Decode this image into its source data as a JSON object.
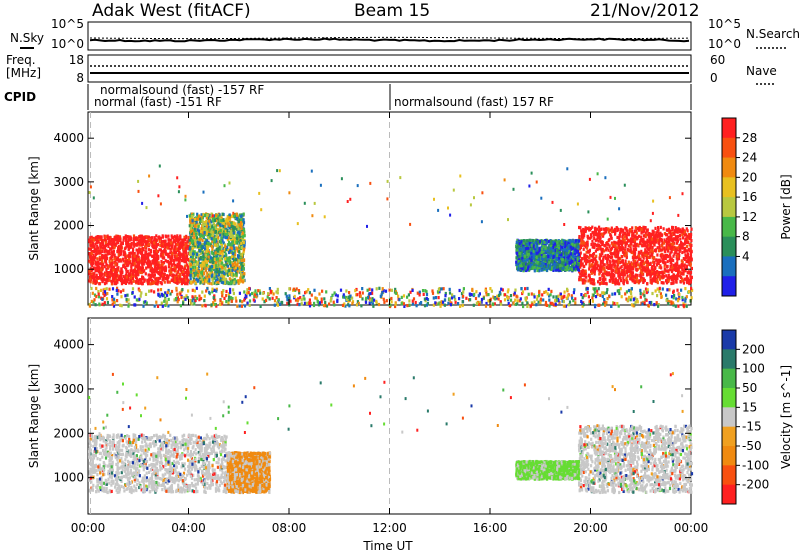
{
  "header": {
    "title": "Adak West (fitACF)",
    "beam": "Beam 15",
    "date": "21/Nov/2012"
  },
  "summary": {
    "nsky_label": "N.Sky",
    "nsearch_label": "N.Search",
    "freq_label_1": "Freq.",
    "freq_label_2": "[MHz]",
    "nave_label": "Nave",
    "cpid_label": "CPID",
    "left_ticks_top": [
      "10^5",
      "10^0"
    ],
    "right_ticks_top": [
      "10^5",
      "10^0"
    ],
    "left_ticks_freq": [
      "18",
      "8"
    ],
    "right_ticks_nave": [
      "60",
      "0"
    ]
  },
  "cpid": {
    "segments": [
      "normalsound (fast) -157 RF",
      "normal (fast) -151 RF",
      "normalsound (fast) 157 RF"
    ]
  },
  "chart_data": [
    {
      "type": "heatmap",
      "parameter": "Power",
      "ylabel": "Slant Range [km]",
      "xlabel": "",
      "ylim": [
        180,
        4600
      ],
      "xlim_hours": [
        0,
        24
      ],
      "yticks": [
        1000,
        2000,
        3000,
        4000
      ],
      "colorbar_label": "Power [dB]",
      "colorbar_ticks": [
        "4",
        "8",
        "12",
        "16",
        "20",
        "24",
        "28"
      ],
      "colors": [
        "#2020e8",
        "#1a6fbe",
        "#2a8f5a",
        "#48b848",
        "#b8c840",
        "#e8c020",
        "#f08a10",
        "#f85010",
        "#ff2020"
      ],
      "regions": [
        {
          "hours": [
            0.0,
            4.0
          ],
          "range_km": [
            700,
            1800
          ],
          "level": "high"
        },
        {
          "hours": [
            4.0,
            6.2
          ],
          "range_km": [
            700,
            2300
          ],
          "level": "medium"
        },
        {
          "hours": [
            19.5,
            24.0
          ],
          "range_km": [
            700,
            2000
          ],
          "level": "high"
        },
        {
          "hours": [
            17.0,
            19.5
          ],
          "range_km": [
            1000,
            1700
          ],
          "level": "low"
        },
        {
          "hours": [
            0.0,
            24.0
          ],
          "range_km": [
            180,
            600
          ],
          "level": "mixed"
        }
      ]
    },
    {
      "type": "heatmap",
      "parameter": "Velocity",
      "ylabel": "Slant Range [km]",
      "xlabel": "Time UT",
      "ylim": [
        180,
        4600
      ],
      "xlim_hours": [
        0,
        24
      ],
      "yticks": [
        1000,
        2000,
        3000,
        4000
      ],
      "xticks": [
        "00:00",
        "04:00",
        "08:00",
        "12:00",
        "16:00",
        "20:00",
        "00:00"
      ],
      "colorbar_label": "Velocity [m s^-1]",
      "colorbar_ticks": [
        "200",
        "100",
        "50",
        "15",
        "-15",
        "-50",
        "-100",
        "-200"
      ],
      "colors": [
        "#1a3aa8",
        "#2a7a6a",
        "#48b848",
        "#66dd33",
        "#c8c8c8",
        "#f0a020",
        "#f08a10",
        "#f85010",
        "#ff2020"
      ],
      "regions": [
        {
          "hours": [
            0.0,
            5.5
          ],
          "range_km": [
            700,
            2000
          ],
          "level": "near-zero"
        },
        {
          "hours": [
            5.5,
            7.2
          ],
          "range_km": [
            700,
            1600
          ],
          "level": "negative"
        },
        {
          "hours": [
            19.5,
            24.0
          ],
          "range_km": [
            700,
            2200
          ],
          "level": "near-zero"
        },
        {
          "hours": [
            17.0,
            19.5
          ],
          "range_km": [
            1000,
            1400
          ],
          "level": "positive"
        }
      ]
    }
  ]
}
